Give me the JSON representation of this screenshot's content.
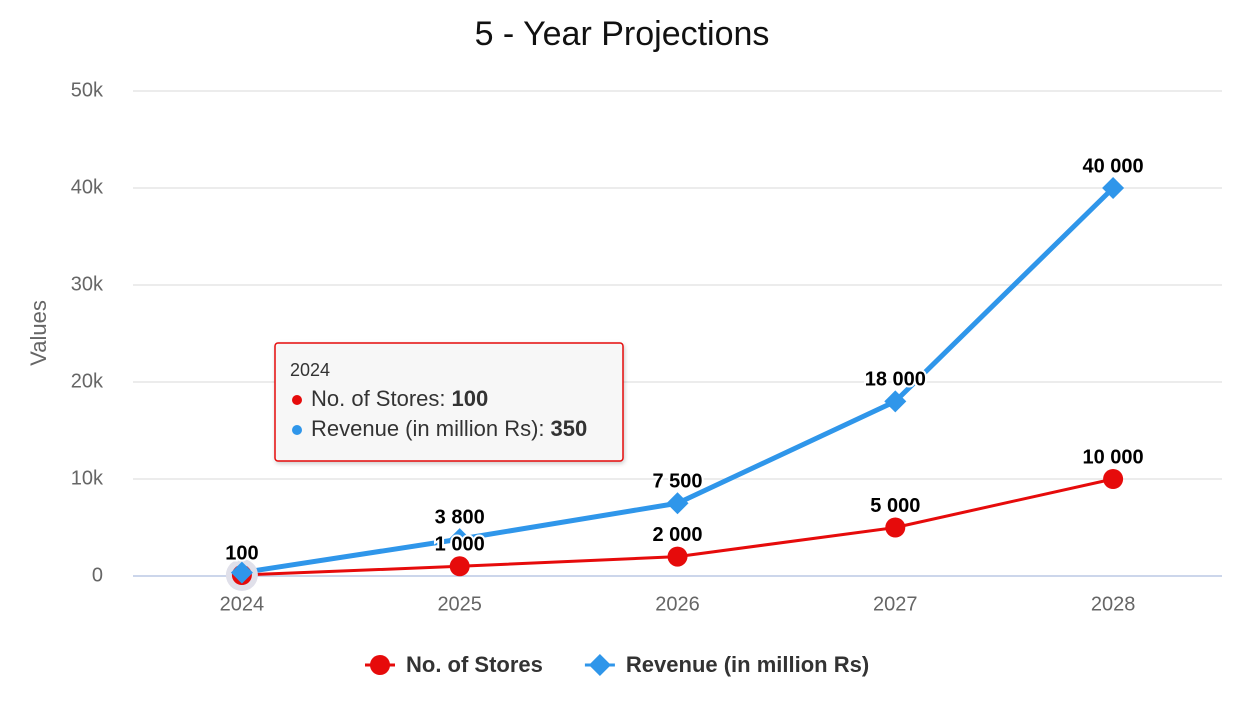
{
  "chart_data": {
    "type": "line",
    "title": "5 - Year Projections",
    "y_label": "Values",
    "categories": [
      "2024",
      "2025",
      "2026",
      "2027",
      "2028"
    ],
    "series": [
      {
        "name": "No. of Stores",
        "color": "#e60b0b",
        "marker": "circle",
        "values": [
          100,
          1000,
          2000,
          5000,
          10000
        ],
        "value_labels": [
          "100",
          "1 000",
          "2 000",
          "5 000",
          "10 000"
        ]
      },
      {
        "name": "Revenue (in million Rs)",
        "color": "#2f96ea",
        "marker": "diamond",
        "values": [
          350,
          3800,
          7500,
          18000,
          40000
        ],
        "value_labels": [
          null,
          "3 800",
          "7 500",
          "18 000",
          "40 000"
        ]
      }
    ],
    "ylim": [
      0,
      50000
    ],
    "yticks": [
      0,
      {
        "value": 10000,
        "label": "10k"
      },
      {
        "value": 20000,
        "label": "20k"
      },
      {
        "value": 30000,
        "label": "30k"
      },
      {
        "value": 40000,
        "label": "40k"
      },
      {
        "value": 50000,
        "label": "50k"
      }
    ],
    "grid": true,
    "legend": "bottom",
    "tooltip": {
      "index": 0,
      "separator": ":"
    }
  }
}
